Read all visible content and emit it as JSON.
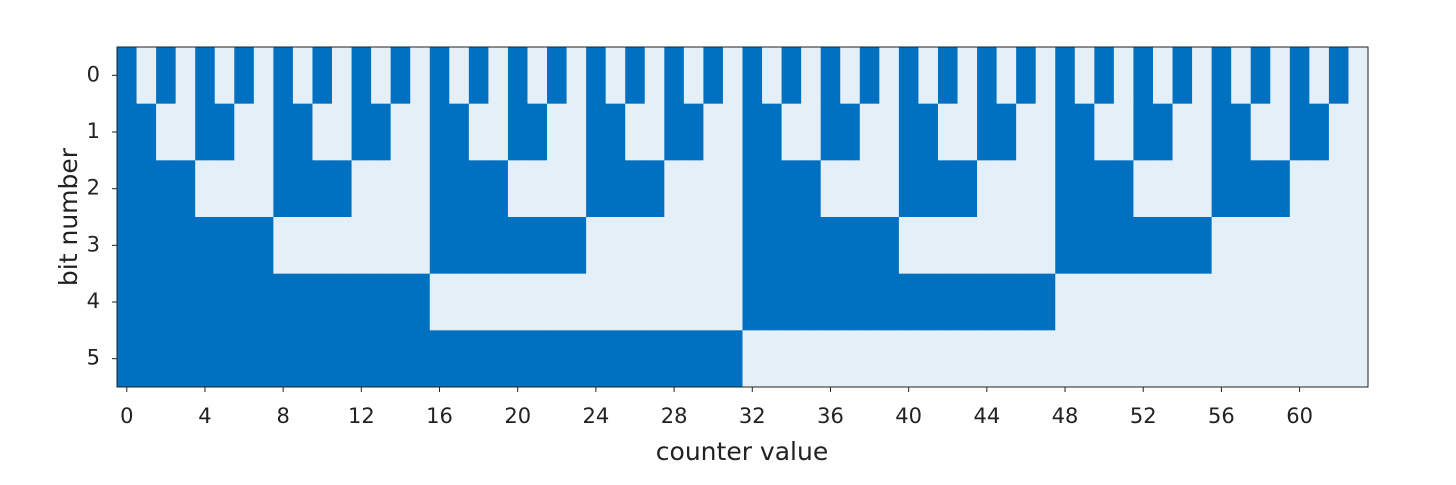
{
  "chart_data": {
    "type": "heatmap",
    "xlabel": "counter value",
    "ylabel": "bit number",
    "x": [
      0,
      1,
      2,
      3,
      4,
      5,
      6,
      7,
      8,
      9,
      10,
      11,
      12,
      13,
      14,
      15,
      16,
      17,
      18,
      19,
      20,
      21,
      22,
      23,
      24,
      25,
      26,
      27,
      28,
      29,
      30,
      31,
      32,
      33,
      34,
      35,
      36,
      37,
      38,
      39,
      40,
      41,
      42,
      43,
      44,
      45,
      46,
      47,
      48,
      49,
      50,
      51,
      52,
      53,
      54,
      55,
      56,
      57,
      58,
      59,
      60,
      61,
      62,
      63
    ],
    "y": [
      0,
      1,
      2,
      3,
      4,
      5
    ],
    "z": [
      [
        0,
        1,
        0,
        1,
        0,
        1,
        0,
        1,
        0,
        1,
        0,
        1,
        0,
        1,
        0,
        1,
        0,
        1,
        0,
        1,
        0,
        1,
        0,
        1,
        0,
        1,
        0,
        1,
        0,
        1,
        0,
        1,
        0,
        1,
        0,
        1,
        0,
        1,
        0,
        1,
        0,
        1,
        0,
        1,
        0,
        1,
        0,
        1,
        0,
        1,
        0,
        1,
        0,
        1,
        0,
        1,
        0,
        1,
        0,
        1,
        0,
        1,
        0,
        1
      ],
      [
        0,
        0,
        1,
        1,
        0,
        0,
        1,
        1,
        0,
        0,
        1,
        1,
        0,
        0,
        1,
        1,
        0,
        0,
        1,
        1,
        0,
        0,
        1,
        1,
        0,
        0,
        1,
        1,
        0,
        0,
        1,
        1,
        0,
        0,
        1,
        1,
        0,
        0,
        1,
        1,
        0,
        0,
        1,
        1,
        0,
        0,
        1,
        1,
        0,
        0,
        1,
        1,
        0,
        0,
        1,
        1,
        0,
        0,
        1,
        1,
        0,
        0,
        1,
        1
      ],
      [
        0,
        0,
        0,
        0,
        1,
        1,
        1,
        1,
        0,
        0,
        0,
        0,
        1,
        1,
        1,
        1,
        0,
        0,
        0,
        0,
        1,
        1,
        1,
        1,
        0,
        0,
        0,
        0,
        1,
        1,
        1,
        1,
        0,
        0,
        0,
        0,
        1,
        1,
        1,
        1,
        0,
        0,
        0,
        0,
        1,
        1,
        1,
        1,
        0,
        0,
        0,
        0,
        1,
        1,
        1,
        1,
        0,
        0,
        0,
        0,
        1,
        1,
        1,
        1
      ],
      [
        0,
        0,
        0,
        0,
        0,
        0,
        0,
        0,
        1,
        1,
        1,
        1,
        1,
        1,
        1,
        1,
        0,
        0,
        0,
        0,
        0,
        0,
        0,
        0,
        1,
        1,
        1,
        1,
        1,
        1,
        1,
        1,
        0,
        0,
        0,
        0,
        0,
        0,
        0,
        0,
        1,
        1,
        1,
        1,
        1,
        1,
        1,
        1,
        0,
        0,
        0,
        0,
        0,
        0,
        0,
        0,
        1,
        1,
        1,
        1,
        1,
        1,
        1,
        1
      ],
      [
        0,
        0,
        0,
        0,
        0,
        0,
        0,
        0,
        0,
        0,
        0,
        0,
        0,
        0,
        0,
        0,
        1,
        1,
        1,
        1,
        1,
        1,
        1,
        1,
        1,
        1,
        1,
        1,
        1,
        1,
        1,
        1,
        0,
        0,
        0,
        0,
        0,
        0,
        0,
        0,
        0,
        0,
        0,
        0,
        0,
        0,
        0,
        0,
        1,
        1,
        1,
        1,
        1,
        1,
        1,
        1,
        1,
        1,
        1,
        1,
        1,
        1,
        1,
        1
      ],
      [
        0,
        0,
        0,
        0,
        0,
        0,
        0,
        0,
        0,
        0,
        0,
        0,
        0,
        0,
        0,
        0,
        0,
        0,
        0,
        0,
        0,
        0,
        0,
        0,
        0,
        0,
        0,
        0,
        0,
        0,
        0,
        0,
        1,
        1,
        1,
        1,
        1,
        1,
        1,
        1,
        1,
        1,
        1,
        1,
        1,
        1,
        1,
        1,
        1,
        1,
        1,
        1,
        1,
        1,
        1,
        1,
        1,
        1,
        1,
        1,
        1,
        1,
        1,
        1
      ]
    ],
    "zlim": [
      0,
      1
    ],
    "colormap": [
      "#0070c0",
      "#e5eff8"
    ],
    "xlim": [
      -0.5,
      63.5
    ],
    "ylim": [
      5.5,
      -0.5
    ],
    "xticks": [
      0,
      4,
      8,
      12,
      16,
      20,
      24,
      28,
      32,
      36,
      40,
      44,
      48,
      52,
      56,
      60
    ],
    "yticks": [
      0,
      1,
      2,
      3,
      4,
      5
    ]
  }
}
